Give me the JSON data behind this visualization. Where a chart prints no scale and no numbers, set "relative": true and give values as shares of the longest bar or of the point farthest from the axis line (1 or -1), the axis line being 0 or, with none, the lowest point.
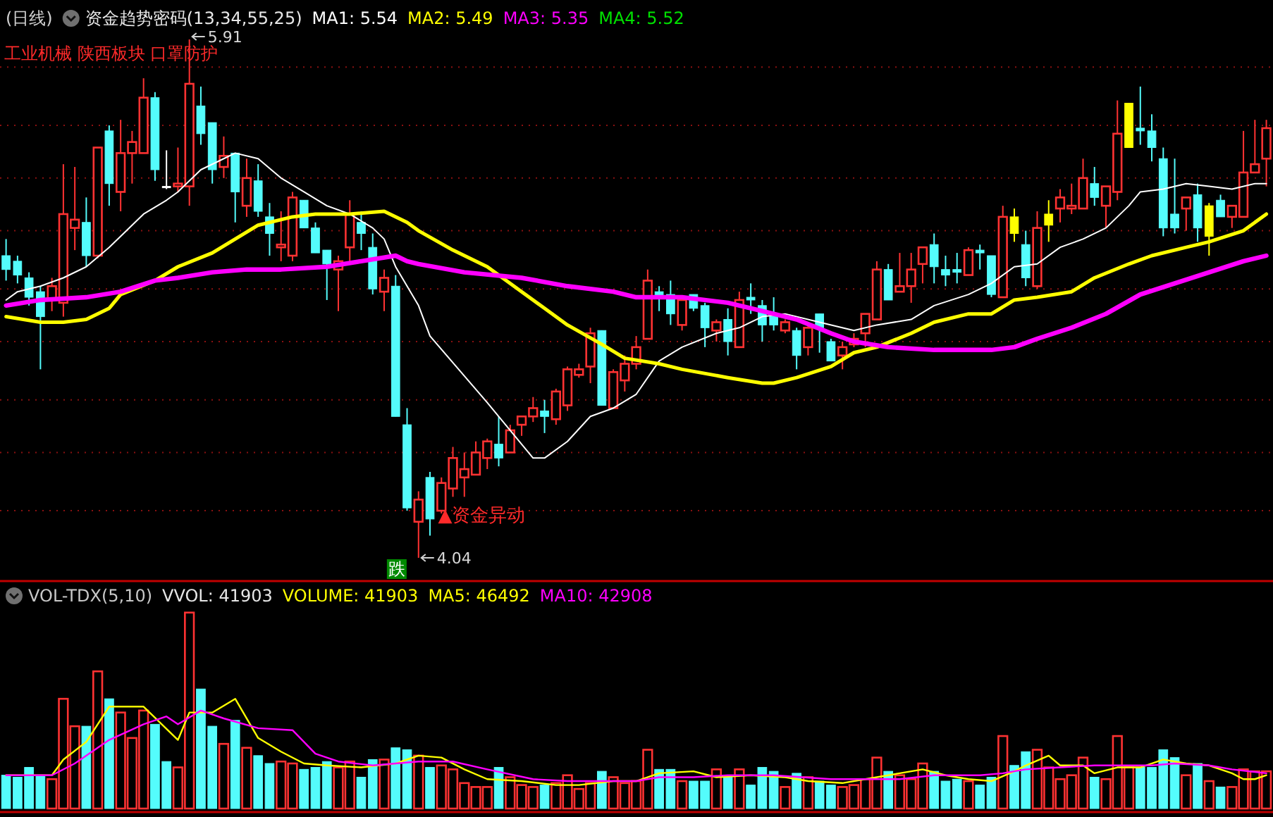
{
  "chart_data": [
    {
      "type": "candlestick",
      "title": "(日线)",
      "subtitle": "资金趋势密码(13,34,55,25)",
      "legend": "top left",
      "grid": "y",
      "yticks": [
        {
          "value": 5.81,
          "label": null
        },
        {
          "value": 5.6,
          "label": null
        },
        {
          "value": 5.41,
          "label": null
        },
        {
          "value": 5.22,
          "label": null
        },
        {
          "value": 5.01,
          "label": null
        },
        {
          "value": 4.82,
          "label": null
        },
        {
          "value": 4.61,
          "label": null
        },
        {
          "value": 4.42,
          "label": null
        },
        {
          "value": 4.21,
          "label": null
        }
      ],
      "categories": [
        null,
        null,
        null,
        null,
        null,
        null,
        null,
        null,
        null,
        null,
        null,
        null,
        null,
        null,
        null,
        null,
        null,
        null,
        null,
        null,
        null,
        null,
        null,
        null,
        null,
        null,
        null,
        null,
        null,
        null,
        null,
        null,
        null,
        null,
        null,
        null,
        null,
        null,
        null,
        null,
        null,
        null,
        null,
        null,
        null,
        null,
        null,
        null,
        null,
        null,
        null,
        null,
        null,
        null,
        null,
        null,
        null,
        null,
        null,
        null,
        null,
        null,
        null,
        null,
        null,
        null,
        null,
        null,
        null,
        null,
        null,
        null,
        null,
        null,
        null,
        null,
        null,
        null,
        null,
        null,
        null,
        null,
        null,
        null,
        null,
        null,
        null,
        null,
        null,
        null,
        null,
        null,
        null,
        null,
        null,
        null,
        null,
        null,
        null,
        null,
        null,
        null,
        null,
        null,
        null,
        null,
        null,
        null,
        null,
        null,
        null
      ],
      "ohlc": [
        [
          5.13,
          5.19,
          5.04,
          5.08
        ],
        [
          5.11,
          5.13,
          5.03,
          5.06
        ],
        [
          5.05,
          5.07,
          4.95,
          4.98
        ],
        [
          5.0,
          5.02,
          4.72,
          4.91
        ],
        [
          4.97,
          5.05,
          4.93,
          5.02
        ],
        [
          4.96,
          5.46,
          4.91,
          5.28
        ],
        [
          5.23,
          5.45,
          5.15,
          5.26
        ],
        [
          5.25,
          5.34,
          5.09,
          5.13
        ],
        [
          5.13,
          5.52,
          5.12,
          5.52
        ],
        [
          5.58,
          5.6,
          5.31,
          5.39
        ],
        [
          5.36,
          5.62,
          5.29,
          5.5
        ],
        [
          5.5,
          5.58,
          5.39,
          5.54
        ],
        [
          5.5,
          5.77,
          5.5,
          5.7
        ],
        [
          5.7,
          5.72,
          5.4,
          5.44
        ],
        [
          5.38,
          5.51,
          5.37,
          5.38
        ],
        [
          5.38,
          5.52,
          5.36,
          5.39
        ],
        [
          5.38,
          5.91,
          5.31,
          5.75
        ],
        [
          5.67,
          5.74,
          5.53,
          5.57
        ],
        [
          5.61,
          5.61,
          5.39,
          5.44
        ],
        [
          5.45,
          5.56,
          5.41,
          5.49
        ],
        [
          5.5,
          5.5,
          5.25,
          5.36
        ],
        [
          5.31,
          5.48,
          5.27,
          5.41
        ],
        [
          5.4,
          5.46,
          5.27,
          5.29
        ],
        [
          5.27,
          5.32,
          5.13,
          5.21
        ],
        [
          5.16,
          5.29,
          5.11,
          5.17
        ],
        [
          5.13,
          5.36,
          5.11,
          5.34
        ],
        [
          5.33,
          5.33,
          5.23,
          5.23
        ],
        [
          5.23,
          5.25,
          5.14,
          5.14
        ],
        [
          5.15,
          5.15,
          4.97,
          5.1
        ],
        [
          5.08,
          5.13,
          4.93,
          5.11
        ],
        [
          5.16,
          5.33,
          5.11,
          5.28
        ],
        [
          5.25,
          5.29,
          5.15,
          5.21
        ],
        [
          5.16,
          5.21,
          4.99,
          5.01
        ],
        [
          5.0,
          5.08,
          4.93,
          5.05
        ],
        [
          5.02,
          5.06,
          4.55,
          4.55
        ],
        [
          4.52,
          4.58,
          4.21,
          4.22
        ],
        [
          4.17,
          4.28,
          4.04,
          4.25
        ],
        [
          4.33,
          4.35,
          4.12,
          4.18
        ],
        [
          4.21,
          4.33,
          4.2,
          4.31
        ],
        [
          4.29,
          4.44,
          4.26,
          4.4
        ],
        [
          4.33,
          4.42,
          4.26,
          4.36
        ],
        [
          4.34,
          4.46,
          4.34,
          4.42
        ],
        [
          4.4,
          4.47,
          4.36,
          4.46
        ],
        [
          4.45,
          4.55,
          4.37,
          4.4
        ],
        [
          4.42,
          4.52,
          4.42,
          4.5
        ],
        [
          4.52,
          4.55,
          4.48,
          4.55
        ],
        [
          4.55,
          4.62,
          4.53,
          4.58
        ],
        [
          4.57,
          4.61,
          4.49,
          4.55
        ],
        [
          4.54,
          4.65,
          4.52,
          4.64
        ],
        [
          4.59,
          4.73,
          4.57,
          4.72
        ],
        [
          4.7,
          4.74,
          4.69,
          4.72
        ],
        [
          4.73,
          4.87,
          4.67,
          4.85
        ],
        [
          4.86,
          4.86,
          4.59,
          4.59
        ],
        [
          4.58,
          4.72,
          4.58,
          4.71
        ],
        [
          4.68,
          4.77,
          4.64,
          4.74
        ],
        [
          4.74,
          4.84,
          4.72,
          4.8
        ],
        [
          4.83,
          5.08,
          4.83,
          5.04
        ],
        [
          5.0,
          5.02,
          4.93,
          4.98
        ],
        [
          4.99,
          5.04,
          4.88,
          4.92
        ],
        [
          4.88,
          4.98,
          4.86,
          4.97
        ],
        [
          4.99,
          4.99,
          4.93,
          4.94
        ],
        [
          4.95,
          4.96,
          4.8,
          4.87
        ],
        [
          4.86,
          4.9,
          4.82,
          4.89
        ],
        [
          4.9,
          4.94,
          4.77,
          4.82
        ],
        [
          4.8,
          5.0,
          4.8,
          4.97
        ],
        [
          4.98,
          5.03,
          4.92,
          4.97
        ],
        [
          4.95,
          4.97,
          4.82,
          4.88
        ],
        [
          4.91,
          4.98,
          4.86,
          4.88
        ],
        [
          4.86,
          4.9,
          4.85,
          4.89
        ],
        [
          4.86,
          4.87,
          4.72,
          4.77
        ],
        [
          4.8,
          4.89,
          4.77,
          4.87
        ],
        [
          4.92,
          4.92,
          4.78,
          4.87
        ],
        [
          4.82,
          4.83,
          4.75,
          4.75
        ],
        [
          4.77,
          4.82,
          4.72,
          4.8
        ],
        [
          4.81,
          4.85,
          4.8,
          4.83
        ],
        [
          4.85,
          4.92,
          4.8,
          4.92
        ],
        [
          4.9,
          5.11,
          4.9,
          5.08
        ],
        [
          5.08,
          5.1,
          4.97,
          4.97
        ],
        [
          5.0,
          5.14,
          5.0,
          5.02
        ],
        [
          5.02,
          5.14,
          4.96,
          5.08
        ],
        [
          5.1,
          5.16,
          5.03,
          5.16
        ],
        [
          5.17,
          5.21,
          5.03,
          5.09
        ],
        [
          5.08,
          5.13,
          5.02,
          5.06
        ],
        [
          5.08,
          5.14,
          5.03,
          5.07
        ],
        [
          5.06,
          5.16,
          5.06,
          5.15
        ],
        [
          5.15,
          5.17,
          5.08,
          5.14
        ],
        [
          5.13,
          5.13,
          4.98,
          4.99
        ],
        [
          4.98,
          5.31,
          4.98,
          5.27
        ],
        [
          5.27,
          5.3,
          5.18,
          5.21
        ],
        [
          5.17,
          5.22,
          5.02,
          5.05
        ],
        [
          5.02,
          5.29,
          5.01,
          5.23
        ],
        [
          5.28,
          5.33,
          5.18,
          5.24
        ],
        [
          5.3,
          5.37,
          5.25,
          5.34
        ],
        [
          5.3,
          5.39,
          5.28,
          5.31
        ],
        [
          5.3,
          5.48,
          5.3,
          5.41
        ],
        [
          5.39,
          5.45,
          5.31,
          5.34
        ],
        [
          5.31,
          5.38,
          5.23,
          5.38
        ],
        [
          5.36,
          5.69,
          5.33,
          5.57
        ],
        [
          5.68,
          5.68,
          5.52,
          5.52
        ],
        [
          5.59,
          5.74,
          5.53,
          5.58
        ],
        [
          5.58,
          5.64,
          5.47,
          5.52
        ],
        [
          5.48,
          5.52,
          5.2,
          5.23
        ],
        [
          5.28,
          5.48,
          5.21,
          5.23
        ],
        [
          5.3,
          5.34,
          5.22,
          5.34
        ],
        [
          5.35,
          5.39,
          5.18,
          5.23
        ],
        [
          5.31,
          5.32,
          5.13,
          5.2
        ],
        [
          5.33,
          5.35,
          5.27,
          5.27
        ],
        [
          5.27,
          5.31,
          5.23,
          5.31
        ],
        [
          5.27,
          5.58,
          5.27,
          5.43
        ],
        [
          5.43,
          5.62,
          5.43,
          5.46
        ],
        [
          5.48,
          5.62,
          5.38,
          5.59
        ]
      ],
      "colors": [
        "#54fcfc",
        "#54fcfc",
        "#54fcfc",
        "#54fcfc",
        "#ff3232",
        "#ff3232",
        "#ff3232",
        "#54fcfc",
        "#ff3232",
        "#54fcfc",
        "#ff3232",
        "#ff3232",
        "#ff3232",
        "#54fcfc",
        "#ffffff",
        "#ff3232",
        "#ff3232",
        "#54fcfc",
        "#54fcfc",
        "#ff3232",
        "#54fcfc",
        "#ff3232",
        "#54fcfc",
        "#54fcfc",
        "#ff3232",
        "#ff3232",
        "#54fcfc",
        "#54fcfc",
        "#54fcfc",
        "#ff3232",
        "#ff3232",
        "#54fcfc",
        "#54fcfc",
        "#ff3232",
        "#54fcfc",
        "#54fcfc",
        "#ff3232",
        "#54fcfc",
        "#ff3232",
        "#ff3232",
        "#ff3232",
        "#ff3232",
        "#ff3232",
        "#54fcfc",
        "#ff3232",
        "#ff3232",
        "#ff3232",
        "#54fcfc",
        "#ff3232",
        "#ff3232",
        "#ff3232",
        "#ff3232",
        "#54fcfc",
        "#ff3232",
        "#ff3232",
        "#ff3232",
        "#ff3232",
        "#54fcfc",
        "#54fcfc",
        "#ff3232",
        "#54fcfc",
        "#54fcfc",
        "#ff3232",
        "#54fcfc",
        "#ff3232",
        "#54fcfc",
        "#54fcfc",
        "#54fcfc",
        "#ff3232",
        "#54fcfc",
        "#ff3232",
        "#54fcfc",
        "#54fcfc",
        "#ff3232",
        "#ff3232",
        "#ff3232",
        "#ff3232",
        "#54fcfc",
        "#ff3232",
        "#ff3232",
        "#ff3232",
        "#54fcfc",
        "#54fcfc",
        "#54fcfc",
        "#ff3232",
        "#54fcfc",
        "#54fcfc",
        "#ff3232",
        "#ffff00",
        "#54fcfc",
        "#ff3232",
        "#ffff00",
        "#ff3232",
        "#ff3232",
        "#ff3232",
        "#54fcfc",
        "#ff3232",
        "#ff3232",
        "#ffff00",
        "#54fcfc",
        "#54fcfc",
        "#54fcfc",
        "#54fcfc",
        "#ff3232",
        "#54fcfc",
        "#ffff00",
        "#54fcfc",
        "#ff3232",
        "#ff3232",
        "#ff3232",
        "#ff3232"
      ],
      "series": [
        {
          "name": "MA1: 5.54",
          "type": "line",
          "color": "#ffffff",
          "values": [
            4.97,
            5.0,
            null,
            5.02,
            null,
            5.05,
            null,
            5.09,
            null,
            5.16,
            null,
            null,
            5.28,
            null,
            5.33,
            5.36,
            null,
            5.44,
            null,
            5.48,
            5.5,
            null,
            5.48,
            null,
            5.41,
            null,
            5.36,
            null,
            5.31,
            null,
            5.28,
            null,
            5.23,
            5.19,
            5.09,
            null,
            4.95,
            4.84,
            null,
            null,
            null,
            null,
            4.6,
            4.55,
            null,
            null,
            4.4,
            4.4,
            null,
            4.46,
            null,
            4.55,
            null,
            4.58,
            null,
            4.63,
            null,
            4.75,
            null,
            4.8,
            null,
            null,
            4.85,
            null,
            4.87,
            null,
            4.91,
            null,
            4.92,
            null,
            null,
            4.89,
            null,
            null,
            4.86,
            null,
            4.88,
            null,
            null,
            4.9,
            null,
            4.95,
            null,
            null,
            4.99,
            null,
            5.03,
            null,
            5.09,
            null,
            5.1,
            null,
            5.16,
            null,
            5.19,
            null,
            5.23,
            null,
            5.31,
            5.36,
            null,
            5.37,
            null,
            5.39,
            null,
            5.38,
            null,
            5.37,
            null,
            5.39,
            5.39
          ]
        },
        {
          "name": "MA2: 5.49",
          "type": "line",
          "color": "#ffff00",
          "values": [
            4.91,
            null,
            null,
            4.89,
            null,
            4.89,
            null,
            4.9,
            null,
            4.94,
            4.99,
            null,
            null,
            5.04,
            null,
            5.09,
            null,
            null,
            5.14,
            null,
            5.19,
            null,
            5.24,
            null,
            null,
            5.27,
            null,
            5.28,
            null,
            null,
            5.28,
            null,
            null,
            5.29,
            null,
            5.25,
            5.22,
            null,
            null,
            5.15,
            null,
            null,
            5.09,
            null,
            null,
            5.0,
            null,
            4.94,
            null,
            4.88,
            null,
            null,
            4.81,
            null,
            4.76,
            null,
            null,
            4.74,
            null,
            4.72,
            null,
            null,
            null,
            4.69,
            null,
            null,
            4.67,
            4.67,
            null,
            4.69,
            null,
            null,
            4.73,
            null,
            4.78,
            null,
            4.8,
            null,
            null,
            4.85,
            null,
            4.89,
            null,
            null,
            4.92,
            null,
            4.92,
            null,
            4.97,
            null,
            4.98,
            null,
            null,
            5.0,
            null,
            5.05,
            null,
            null,
            5.1,
            null,
            5.13,
            null,
            null,
            5.16,
            null,
            5.18,
            null,
            null,
            5.22,
            null,
            5.28
          ]
        },
        {
          "name": "MA3: 5.35",
          "type": "line",
          "color": "#ff00ff",
          "values": [
            4.95,
            null,
            null,
            4.97,
            null,
            null,
            null,
            4.98,
            null,
            null,
            5.0,
            null,
            null,
            5.04,
            null,
            5.05,
            null,
            null,
            5.07,
            null,
            null,
            5.08,
            null,
            null,
            5.08,
            null,
            null,
            null,
            5.09,
            null,
            null,
            5.11,
            null,
            null,
            5.13,
            5.11,
            5.1,
            null,
            null,
            null,
            5.07,
            null,
            null,
            null,
            null,
            5.05,
            null,
            null,
            null,
            5.02,
            null,
            null,
            null,
            5.0,
            null,
            4.98,
            null,
            null,
            null,
            4.98,
            null,
            null,
            null,
            4.96,
            null,
            null,
            4.93,
            null,
            null,
            4.9,
            null,
            null,
            4.85,
            null,
            4.82,
            null,
            null,
            4.8,
            null,
            null,
            null,
            4.79,
            null,
            null,
            null,
            null,
            4.79,
            null,
            4.8,
            null,
            4.83,
            null,
            null,
            4.87,
            null,
            null,
            4.92,
            null,
            null,
            4.99,
            null,
            null,
            5.03,
            null,
            null,
            5.07,
            null,
            null,
            5.11,
            null,
            5.13
          ]
        }
      ],
      "annotations": [
        "工业机械 陕西板块 口罩防护",
        "MA4: 5.52",
        "5.91",
        "4.04",
        "▲资金异动",
        "跌"
      ]
    },
    {
      "type": "bar",
      "relative": true,
      "title": "VOL-TDX(5,10)",
      "legend": "top left",
      "categories": [
        null,
        null,
        null,
        null,
        null,
        null,
        null,
        null,
        null,
        null,
        null,
        null,
        null,
        null,
        null,
        null,
        null,
        null,
        null,
        null,
        null,
        null,
        null,
        null,
        null,
        null,
        null,
        null,
        null,
        null,
        null,
        null,
        null,
        null,
        null,
        null,
        null,
        null,
        null,
        null,
        null,
        null,
        null,
        null,
        null,
        null,
        null,
        null,
        null,
        null,
        null,
        null,
        null,
        null,
        null,
        null,
        null,
        null,
        null,
        null,
        null,
        null,
        null,
        null,
        null,
        null,
        null,
        null,
        null,
        null,
        null,
        null,
        null,
        null,
        null,
        null,
        null,
        null,
        null,
        null,
        null,
        null,
        null,
        null,
        null,
        null,
        null,
        null,
        null,
        null,
        null,
        null,
        null,
        null,
        null,
        null,
        null,
        null,
        null,
        null,
        null,
        null,
        null,
        null,
        null,
        null,
        null,
        null,
        null,
        null,
        null
      ],
      "values": [
        0.17,
        0.16,
        0.21,
        0.17,
        0.15,
        0.56,
        0.42,
        0.42,
        0.7,
        0.56,
        0.49,
        0.36,
        0.5,
        0.43,
        0.24,
        0.21,
        1,
        0.61,
        0.42,
        0.33,
        0.45,
        0.31,
        0.27,
        0.23,
        0.24,
        0.23,
        0.2,
        0.21,
        0.24,
        0.21,
        0.24,
        0.16,
        0.25,
        0.25,
        0.31,
        0.3,
        0.27,
        0.21,
        0.22,
        0.2,
        0.13,
        0.11,
        0.11,
        0.21,
        0.16,
        0.12,
        0.11,
        0.12,
        0.13,
        0.17,
        0.1,
        0.13,
        0.19,
        0.16,
        0.13,
        0.14,
        0.3,
        0.2,
        0.2,
        0.14,
        0.14,
        0.14,
        0.2,
        0.16,
        0.2,
        0.12,
        0.21,
        0.19,
        0.11,
        0.18,
        0.16,
        0.14,
        0.12,
        0.11,
        0.12,
        0.15,
        0.26,
        0.19,
        0.17,
        0.15,
        0.23,
        0.19,
        0.14,
        0.15,
        0.14,
        0.12,
        0.16,
        0.37,
        0.22,
        0.29,
        0.3,
        0.21,
        0.15,
        0.17,
        0.26,
        0.16,
        0.15,
        0.37,
        0.21,
        0.21,
        0.21,
        0.3,
        0.26,
        0.17,
        0.23,
        0.14,
        0.11,
        0.11,
        0.2,
        0.19,
        0.19
      ],
      "colors": [
        "#54fcfc",
        "#54fcfc",
        "#54fcfc",
        "#54fcfc",
        "#ff3232",
        "#ff3232",
        "#ff3232",
        "#54fcfc",
        "#ff3232",
        "#54fcfc",
        "#ff3232",
        "#ff3232",
        "#ff3232",
        "#54fcfc",
        "#54fcfc",
        "#ff3232",
        "#ff3232",
        "#54fcfc",
        "#54fcfc",
        "#ff3232",
        "#54fcfc",
        "#ff3232",
        "#54fcfc",
        "#54fcfc",
        "#ff3232",
        "#ff3232",
        "#54fcfc",
        "#54fcfc",
        "#54fcfc",
        "#ff3232",
        "#ff3232",
        "#54fcfc",
        "#54fcfc",
        "#ff3232",
        "#54fcfc",
        "#54fcfc",
        "#ff3232",
        "#54fcfc",
        "#ff3232",
        "#ff3232",
        "#ff3232",
        "#ff3232",
        "#ff3232",
        "#54fcfc",
        "#ff3232",
        "#ff3232",
        "#ff3232",
        "#54fcfc",
        "#ff3232",
        "#ff3232",
        "#ff3232",
        "#ff3232",
        "#54fcfc",
        "#ff3232",
        "#ff3232",
        "#ff3232",
        "#ff3232",
        "#54fcfc",
        "#54fcfc",
        "#ff3232",
        "#54fcfc",
        "#54fcfc",
        "#ff3232",
        "#54fcfc",
        "#ff3232",
        "#54fcfc",
        "#54fcfc",
        "#54fcfc",
        "#ff3232",
        "#54fcfc",
        "#ff3232",
        "#54fcfc",
        "#54fcfc",
        "#ff3232",
        "#ff3232",
        "#ff3232",
        "#ff3232",
        "#54fcfc",
        "#ff3232",
        "#ff3232",
        "#ff3232",
        "#54fcfc",
        "#54fcfc",
        "#54fcfc",
        "#ff3232",
        "#54fcfc",
        "#54fcfc",
        "#ff3232",
        "#54fcfc",
        "#54fcfc",
        "#ff3232",
        "#ff3232",
        "#ff3232",
        "#ff3232",
        "#ff3232",
        "#54fcfc",
        "#ff3232",
        "#ff3232",
        "#ff3232",
        "#54fcfc",
        "#54fcfc",
        "#54fcfc",
        "#54fcfc",
        "#ff3232",
        "#54fcfc",
        "#ff3232",
        "#54fcfc",
        "#ff3232",
        "#ff3232",
        "#ff3232",
        "#ff3232"
      ],
      "series": [
        {
          "name": "MA5: 46492",
          "type": "line",
          "color": "#ffff00",
          "values": [
            0.17,
            null,
            null,
            null,
            0.17,
            0.25,
            null,
            0.34,
            null,
            0.52,
            null,
            null,
            0.52,
            null,
            null,
            0.35,
            0.49,
            null,
            0.49,
            null,
            0.56,
            null,
            0.36,
            null,
            0.29,
            null,
            0.23,
            null,
            0.22,
            null,
            null,
            0.21,
            null,
            null,
            0.23,
            null,
            0.27,
            null,
            0.26,
            null,
            0.2,
            null,
            0.15,
            null,
            null,
            0.14,
            null,
            null,
            0.12,
            null,
            0.12,
            null,
            null,
            0.14,
            null,
            0.14,
            null,
            0.18,
            null,
            null,
            0.19,
            null,
            0.16,
            null,
            null,
            0.17,
            null,
            null,
            0.16,
            null,
            0.14,
            null,
            null,
            0.13,
            null,
            0.15,
            null,
            null,
            0.18,
            null,
            0.2,
            null,
            0.17,
            null,
            0.15,
            null,
            0.14,
            null,
            0.19,
            0.22,
            null,
            0.27,
            0.22,
            null,
            0.22,
            0.18,
            null,
            0.21,
            null,
            0.21,
            null,
            0.25,
            null,
            0.23,
            null,
            0.22,
            null,
            0.18,
            0.15,
            0.15,
            0.17
          ]
        },
        {
          "name": "MA10: 42908",
          "type": "line",
          "color": "#ff00ff",
          "values": [
            0.17,
            null,
            null,
            null,
            0.17,
            null,
            0.23,
            null,
            null,
            0.35,
            null,
            null,
            0.43,
            null,
            0.47,
            0.43,
            null,
            0.5,
            null,
            0.46,
            null,
            null,
            0.41,
            null,
            null,
            0.4,
            null,
            0.28,
            null,
            0.24,
            null,
            null,
            0.22,
            null,
            null,
            null,
            0.24,
            null,
            null,
            0.24,
            null,
            null,
            0.2,
            null,
            null,
            null,
            0.15,
            null,
            null,
            0.14,
            null,
            null,
            0.14,
            null,
            null,
            0.14,
            null,
            0.16,
            null,
            null,
            0.16,
            null,
            null,
            0.17,
            null,
            null,
            null,
            0.17,
            null,
            null,
            null,
            null,
            0.15,
            null,
            0.15,
            null,
            null,
            null,
            0.15,
            null,
            null,
            0.17,
            null,
            null,
            null,
            0.17,
            null,
            0.18,
            null,
            0.2,
            null,
            null,
            0.21,
            null,
            null,
            0.22,
            null,
            null,
            0.22,
            null,
            0.22,
            null,
            0.23,
            null,
            null,
            0.22,
            null,
            0.2,
            null,
            null,
            0.18
          ]
        }
      ],
      "annotations": [
        "VVOL: 41903",
        "VOLUME: 41903"
      ]
    }
  ]
}
